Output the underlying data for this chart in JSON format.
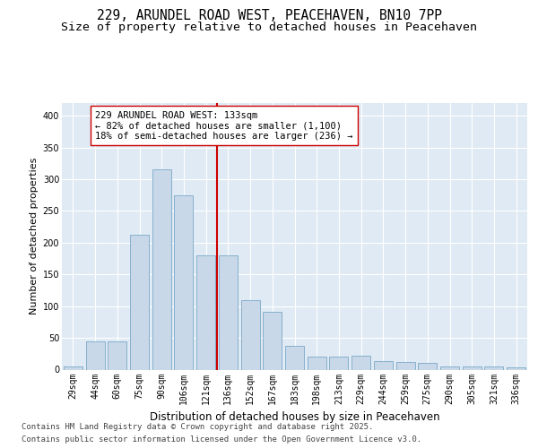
{
  "title_line1": "229, ARUNDEL ROAD WEST, PEACEHAVEN, BN10 7PP",
  "title_line2": "Size of property relative to detached houses in Peacehaven",
  "xlabel": "Distribution of detached houses by size in Peacehaven",
  "ylabel": "Number of detached properties",
  "categories": [
    "29sqm",
    "44sqm",
    "60sqm",
    "75sqm",
    "90sqm",
    "106sqm",
    "121sqm",
    "136sqm",
    "152sqm",
    "167sqm",
    "183sqm",
    "198sqm",
    "213sqm",
    "229sqm",
    "244sqm",
    "259sqm",
    "275sqm",
    "290sqm",
    "305sqm",
    "321sqm",
    "336sqm"
  ],
  "values": [
    5,
    44,
    44,
    212,
    315,
    275,
    180,
    180,
    110,
    91,
    38,
    21,
    21,
    22,
    13,
    12,
    10,
    5,
    5,
    5,
    3
  ],
  "bar_color": "#c8d8e8",
  "bar_edge_color": "#7aa8c8",
  "vline_color": "#cc0000",
  "annotation_text": "229 ARUNDEL ROAD WEST: 133sqm\n← 82% of detached houses are smaller (1,100)\n18% of semi-detached houses are larger (236) →",
  "annotation_box_facecolor": "#ffffff",
  "annotation_box_edgecolor": "#cc0000",
  "footer_line1": "Contains HM Land Registry data © Crown copyright and database right 2025.",
  "footer_line2": "Contains public sector information licensed under the Open Government Licence v3.0.",
  "ylim": [
    0,
    420
  ],
  "yticks": [
    0,
    50,
    100,
    150,
    200,
    250,
    300,
    350,
    400
  ],
  "bg_color": "#e0eaf4",
  "grid_color": "#ffffff",
  "title_fontsize": 10.5,
  "subtitle_fontsize": 9.5,
  "xlabel_fontsize": 8.5,
  "ylabel_fontsize": 8,
  "tick_fontsize": 7,
  "annotation_fontsize": 7.5,
  "footer_fontsize": 6.5
}
